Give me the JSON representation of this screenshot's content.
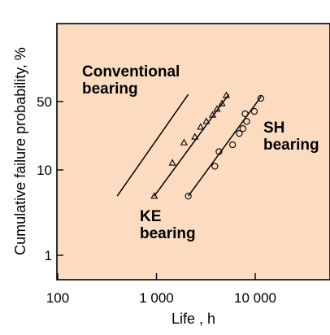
{
  "chart_data": {
    "type": "scatter",
    "title": "",
    "xlabel": "Life , h",
    "ylabel": "Cumulative failure probability, %",
    "x_scale": "log",
    "y_scale": "weibull",
    "xlim": [
      100,
      30000
    ],
    "ylim": [
      0.6,
      90
    ],
    "x_ticks": [
      {
        "value": 100,
        "label": "100"
      },
      {
        "value": 1000,
        "label": "1 000"
      },
      {
        "value": 10000,
        "label": "10 000"
      }
    ],
    "y_ticks": [
      {
        "value": 1,
        "label": "1"
      },
      {
        "value": 10,
        "label": "10"
      },
      {
        "value": 50,
        "label": "50"
      }
    ],
    "grid": false,
    "colors": {
      "plot_background": "#fcdcc0",
      "line": "#000000"
    },
    "series": [
      {
        "name_lines": [
          "Conventional",
          "bearing"
        ],
        "marker": "none",
        "line": {
          "x": [
            400,
            2100
          ],
          "y": [
            5,
            57
          ]
        }
      },
      {
        "name_lines": [
          "KE",
          "bearing"
        ],
        "marker": "triangle",
        "line": {
          "x": [
            950,
            5400
          ],
          "y": [
            5,
            57
          ]
        },
        "points": [
          {
            "x": 950,
            "y": 5
          },
          {
            "x": 1450,
            "y": 12
          },
          {
            "x": 1900,
            "y": 20
          },
          {
            "x": 2450,
            "y": 23
          },
          {
            "x": 2800,
            "y": 29
          },
          {
            "x": 3200,
            "y": 33
          },
          {
            "x": 3700,
            "y": 38
          },
          {
            "x": 4100,
            "y": 43
          },
          {
            "x": 4600,
            "y": 48
          },
          {
            "x": 5100,
            "y": 56
          }
        ]
      },
      {
        "name_lines": [
          "SH",
          "bearing"
        ],
        "marker": "circle",
        "line": {
          "x": [
            2100,
            11500
          ],
          "y": [
            5,
            55
          ]
        },
        "points": [
          {
            "x": 2100,
            "y": 5
          },
          {
            "x": 3900,
            "y": 11
          },
          {
            "x": 4300,
            "y": 16
          },
          {
            "x": 5900,
            "y": 19
          },
          {
            "x": 6900,
            "y": 25
          },
          {
            "x": 7500,
            "y": 28
          },
          {
            "x": 8200,
            "y": 33
          },
          {
            "x": 7900,
            "y": 39
          },
          {
            "x": 9800,
            "y": 41
          },
          {
            "x": 11400,
            "y": 53
          }
        ]
      }
    ]
  }
}
